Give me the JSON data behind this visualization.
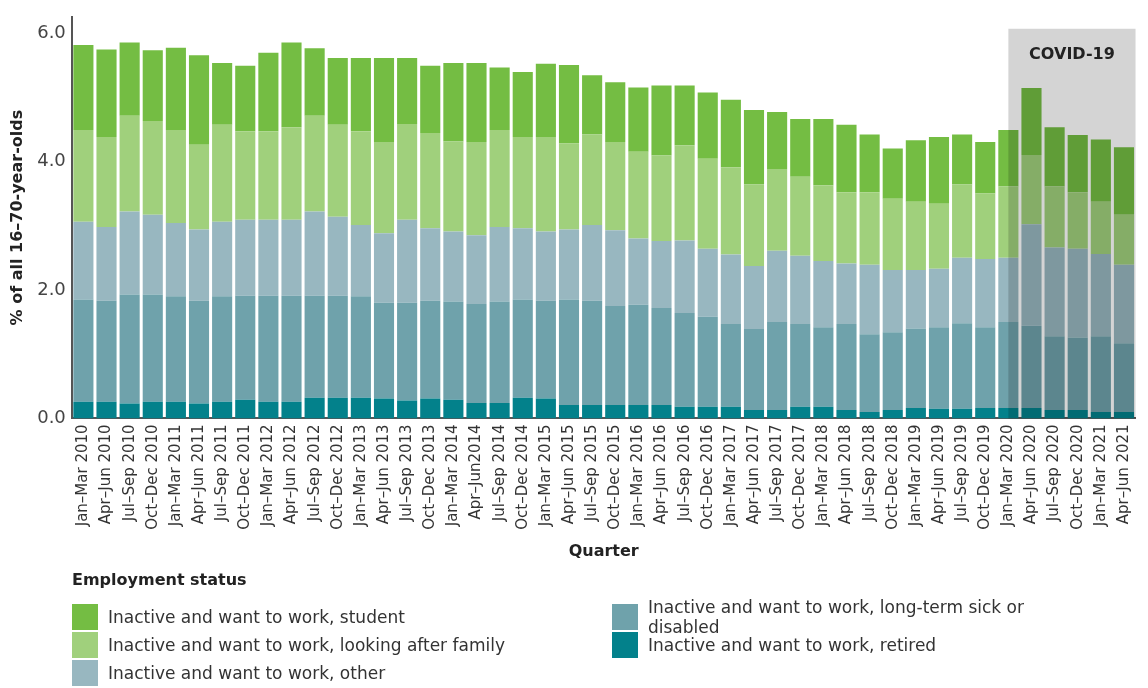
{
  "chart_data": {
    "type": "bar",
    "stacked": true,
    "xlabel": "Quarter",
    "ylabel": "% of all 16–70-year-olds",
    "legend_title": "Employment status",
    "legend": "bottom",
    "grid": false,
    "categories": [
      "Jan–Mar 2010",
      "Apr–Jun 2010",
      "Jul–Sep 2010",
      "Oct–Dec 2010",
      "Jan–Mar 2011",
      "Apr–Jun 2011",
      "Jul–Sep 2011",
      "Oct–Dec 2011",
      "Jan–Mar 2012",
      "Apr–Jun 2012",
      "Jul–Sep 2012",
      "Oct–Dec 2012",
      "Jan–Mar 2013",
      "Apr–Jun 2013",
      "Jul–Sep 2013",
      "Oct–Dec 2013",
      "Jan–Mar 2014",
      "Apr–Jun2014",
      "Jul–Sep 2014",
      "Oct–Dec 2014",
      "Jan–Mar 2015",
      "Apr–Jun 2015",
      "Jul–Sep 2015",
      "Oct–Dec 2015",
      "Jan–Mar 2016",
      "Apr–Jun 2016",
      "Jul–Sep 2016",
      "Oct–Dec 2016",
      "Jan–Mar 2017",
      "Apr–Jun 2017",
      "Jul–Sep 2017",
      "Oct–Dec 2017",
      "Jan–Mar 2018",
      "Apr–Jun 2018",
      "Jul–Sep 2018",
      "Oct–Dec 2018",
      "Jan–Mar 2019",
      "Apr–Jun 2019",
      "Jul–Sep 2019",
      "Oct–Dec 2019",
      "Jan–Mar 2020",
      "Apr–Jun 2020",
      "Jul–Sep 2020",
      "Oct–Dec 2020",
      "Jan–Mar 2021",
      "Apr–Jun 2021"
    ],
    "series": [
      {
        "name": "Inactive and want to work, retired",
        "color": "#03818b",
        "values": [
          0.26,
          0.26,
          0.23,
          0.26,
          0.26,
          0.23,
          0.26,
          0.29,
          0.26,
          0.26,
          0.32,
          0.32,
          0.32,
          0.31,
          0.28,
          0.31,
          0.29,
          0.24,
          0.24,
          0.32,
          0.31,
          0.21,
          0.21,
          0.21,
          0.21,
          0.21,
          0.18,
          0.18,
          0.18,
          0.13,
          0.13,
          0.18,
          0.18,
          0.13,
          0.1,
          0.13,
          0.16,
          0.15,
          0.15,
          0.16,
          0.16,
          0.16,
          0.13,
          0.13,
          0.1,
          0.1
        ]
      },
      {
        "name": "Inactive and want to work, long-term sick or disabled",
        "color": "#6fa2ab",
        "values": [
          1.59,
          1.57,
          1.7,
          1.67,
          1.64,
          1.6,
          1.64,
          1.62,
          1.65,
          1.65,
          1.59,
          1.59,
          1.58,
          1.49,
          1.52,
          1.52,
          1.53,
          1.54,
          1.58,
          1.53,
          1.52,
          1.64,
          1.62,
          1.54,
          1.56,
          1.51,
          1.46,
          1.4,
          1.29,
          1.26,
          1.37,
          1.29,
          1.24,
          1.34,
          1.21,
          1.21,
          1.24,
          1.27,
          1.33,
          1.26,
          1.34,
          1.28,
          1.15,
          1.13,
          1.18,
          1.07
        ]
      },
      {
        "name": "Inactive and want to work, other",
        "color": "#98b7c0",
        "values": [
          1.21,
          1.15,
          1.29,
          1.24,
          1.14,
          1.11,
          1.16,
          1.18,
          1.18,
          1.18,
          1.31,
          1.23,
          1.11,
          1.08,
          1.29,
          1.13,
          1.09,
          1.07,
          1.16,
          1.11,
          1.08,
          1.09,
          1.18,
          1.18,
          1.03,
          1.04,
          1.13,
          1.06,
          1.08,
          0.98,
          1.11,
          1.06,
          1.03,
          0.94,
          1.08,
          0.97,
          0.91,
          0.91,
          1.02,
          1.06,
          1.0,
          1.58,
          1.38,
          1.38,
          1.28,
          1.22
        ]
      },
      {
        "name": "Inactive and want to work, looking after family",
        "color": "#a0d07c",
        "values": [
          1.43,
          1.4,
          1.49,
          1.46,
          1.45,
          1.32,
          1.51,
          1.38,
          1.38,
          1.44,
          1.49,
          1.43,
          1.46,
          1.42,
          1.49,
          1.48,
          1.4,
          1.45,
          1.51,
          1.42,
          1.47,
          1.34,
          1.41,
          1.37,
          1.35,
          1.33,
          1.48,
          1.4,
          1.36,
          1.27,
          1.27,
          1.23,
          1.18,
          1.11,
          1.13,
          1.11,
          1.06,
          1.01,
          1.14,
          1.02,
          1.11,
          1.08,
          0.95,
          0.88,
          0.81,
          0.78
        ]
      },
      {
        "name": "Inactive and want to work, student",
        "color": "#74bd43",
        "values": [
          1.32,
          1.36,
          1.14,
          1.1,
          1.28,
          1.39,
          0.96,
          1.02,
          1.22,
          1.32,
          1.05,
          1.04,
          1.14,
          1.31,
          1.03,
          1.05,
          1.22,
          1.23,
          0.97,
          1.01,
          1.14,
          1.22,
          0.92,
          0.93,
          1.0,
          1.09,
          0.93,
          1.03,
          1.05,
          1.16,
          0.89,
          0.9,
          1.03,
          1.05,
          0.9,
          0.78,
          0.96,
          1.04,
          0.78,
          0.8,
          0.88,
          1.04,
          0.92,
          0.89,
          0.97,
          1.05
        ]
      }
    ],
    "ylim": [
      0,
      6.25
    ],
    "yticks": [
      {
        "value": 0,
        "label": "0.0"
      },
      {
        "value": 2,
        "label": "2.0"
      },
      {
        "value": 4,
        "label": "4.0"
      },
      {
        "value": 6,
        "label": "6.0"
      }
    ],
    "bands": [
      {
        "axis": "x",
        "from": "Jan–Mar 2020",
        "to": "Apr–Jun 2021",
        "label": "COVID-19",
        "color": "#d4d4d4"
      }
    ]
  }
}
